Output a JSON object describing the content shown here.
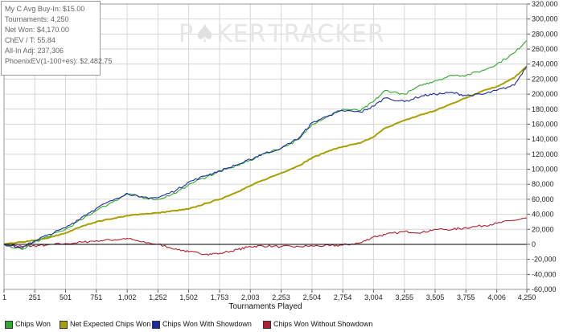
{
  "stats": {
    "avg_buyin": "My C Avg Buy-In: $15.00",
    "tournaments": "Tournaments: 4,250",
    "net_won": "Net Won: $4,170.00",
    "chev_t": "ChEV / T: 55.84",
    "allin_adj": "All-In Adj: 237,306",
    "phoenix_ev": "PhoenixEV(1-100+es): $2,482.75"
  },
  "watermark": {
    "part1": "P",
    "part2": "KER",
    "part3": "TRACKER"
  },
  "colors": {
    "chips_won": "#2ea82e",
    "net_expected": "#a8a000",
    "won_with_showdown": "#1f2aa0",
    "won_without_showdown": "#b02030",
    "grid": "#d6d6d6",
    "axis": "#000000"
  },
  "chart_data": {
    "type": "line",
    "title": "",
    "xlabel": "Tournaments Played",
    "ylabel": "",
    "xlim": [
      1,
      4250
    ],
    "ylim": [
      -60000,
      320000
    ],
    "grid": true,
    "legend_position": "bottom",
    "x_ticks": [
      1,
      251,
      501,
      751,
      1002,
      1252,
      1502,
      1753,
      2003,
      2253,
      2504,
      2754,
      3004,
      3255,
      3505,
      3755,
      4006,
      4250
    ],
    "x_tick_labels": [
      "1",
      "251",
      "501",
      "751",
      "1,002",
      "1,252",
      "1,502",
      "1,753",
      "2,003",
      "2,253",
      "2,504",
      "2,754",
      "3,004",
      "3,255",
      "3,505",
      "3,755",
      "4,006",
      "4,250"
    ],
    "y_ticks": [
      -60000,
      -40000,
      -20000,
      0,
      20000,
      40000,
      60000,
      80000,
      100000,
      120000,
      140000,
      160000,
      180000,
      200000,
      220000,
      240000,
      260000,
      280000,
      300000,
      320000
    ],
    "y_tick_labels": [
      "-60,000",
      "-40,000",
      "-20,000",
      "0",
      "20,000",
      "40,000",
      "60,000",
      "80,000",
      "100,000",
      "120,000",
      "140,000",
      "160,000",
      "180,000",
      "200,000",
      "220,000",
      "240,000",
      "260,000",
      "280,000",
      "300,000",
      "320,000"
    ],
    "x": [
      1,
      150,
      251,
      350,
      501,
      650,
      751,
      900,
      1002,
      1100,
      1252,
      1400,
      1502,
      1650,
      1753,
      1900,
      2003,
      2100,
      2253,
      2400,
      2504,
      2650,
      2754,
      2900,
      3004,
      3100,
      3255,
      3400,
      3505,
      3650,
      3755,
      3900,
      4006,
      4150,
      4250
    ],
    "series": [
      {
        "name": "Chips Won",
        "color_key": "chips_won",
        "values": [
          0,
          -7000,
          3000,
          10000,
          20000,
          35000,
          45000,
          58000,
          67000,
          63000,
          60000,
          68000,
          80000,
          90000,
          97000,
          105000,
          112000,
          120000,
          128000,
          140000,
          160000,
          172000,
          180000,
          178000,
          190000,
          205000,
          200000,
          212000,
          218000,
          225000,
          225000,
          232000,
          240000,
          255000,
          272000
        ]
      },
      {
        "name": "Net Expected Chips Won",
        "color_key": "net_expected",
        "values": [
          0,
          3000,
          5000,
          8000,
          15000,
          25000,
          30000,
          35000,
          38000,
          40000,
          42000,
          45000,
          47000,
          55000,
          60000,
          70000,
          78000,
          85000,
          95000,
          105000,
          115000,
          125000,
          130000,
          135000,
          143000,
          155000,
          165000,
          173000,
          178000,
          188000,
          195000,
          205000,
          210000,
          222000,
          237000
        ]
      },
      {
        "name": "Chips Won With Showdown",
        "color_key": "won_with_showdown",
        "values": [
          0,
          -5000,
          5000,
          12000,
          22000,
          38000,
          48000,
          60000,
          68000,
          63000,
          62000,
          72000,
          83000,
          92000,
          98000,
          106000,
          113000,
          120000,
          128000,
          142000,
          162000,
          172000,
          178000,
          176000,
          184000,
          195000,
          190000,
          198000,
          200000,
          202000,
          198000,
          200000,
          205000,
          212000,
          238000
        ]
      },
      {
        "name": "Chips Won Without Showdown",
        "color_key": "won_without_showdown",
        "values": [
          0,
          -3000,
          -2000,
          -1000,
          1000,
          3000,
          5000,
          6000,
          8000,
          4000,
          0,
          -6000,
          -10000,
          -13000,
          -12000,
          -7000,
          -3000,
          -2000,
          -3000,
          -3000,
          -2000,
          -2000,
          -1000,
          2000,
          10000,
          13000,
          17000,
          16000,
          20000,
          20000,
          22000,
          25000,
          28000,
          32000,
          35000
        ]
      }
    ]
  }
}
